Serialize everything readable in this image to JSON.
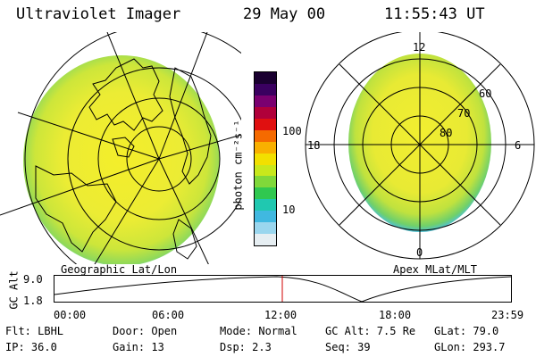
{
  "header": {
    "instrument": "Ultraviolet Imager",
    "date": "29 May 00",
    "time": "11:55:43 UT"
  },
  "colorbar": {
    "unit_label": "photon cm⁻²s⁻¹",
    "ticks": [
      "100",
      "10"
    ],
    "colors": [
      "#1a0030",
      "#3a0060",
      "#7a0070",
      "#b0003a",
      "#e01010",
      "#f56a00",
      "#f9b000",
      "#f2e000",
      "#c8e81c",
      "#80d83a",
      "#30c850",
      "#20c8b0",
      "#40b8e0",
      "#9ad6ee",
      "#e6eef2"
    ]
  },
  "left_map": {
    "caption": "Geographic Lat/Lon"
  },
  "right_map": {
    "caption": "Apex MLat/MLT",
    "mlt_labels": {
      "top": "12",
      "right": "6",
      "bottom": "0",
      "left": "18"
    },
    "lat_labels": [
      "60",
      "70",
      "80"
    ]
  },
  "altitude_plot": {
    "ylabel": "GC Alt",
    "yticks": [
      "9.0",
      "1.8"
    ],
    "xticks": [
      "00:00",
      "06:00",
      "12:00",
      "18:00",
      "23:59"
    ]
  },
  "status": {
    "filter": "Flt: LBHL",
    "ip": "IP: 36.0",
    "door": "Door: Open",
    "gain": "Gain: 13",
    "mode": "Mode: Normal",
    "dsp": "Dsp:     2.3",
    "gc_alt": "GC Alt: 7.5 Re",
    "seq": "Seq: 39",
    "glat": "GLat:  79.0",
    "glon": "GLon: 293.7"
  }
}
